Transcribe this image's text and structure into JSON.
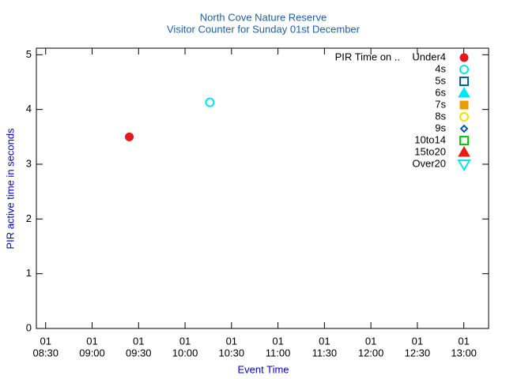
{
  "chart_data": {
    "type": "scatter",
    "title": "North Cove Nature Reserve",
    "subtitle": "Visitor Counter for Sunday 01st December",
    "x_label": "Event Time",
    "y_label": "PIR active time in seconds",
    "legend_title": "PIR Time on ..",
    "legend": "top-right",
    "xlim": [
      "08:24",
      "13:16"
    ],
    "xticks": [
      {
        "value": "08:30",
        "label": [
          "01",
          "08:30"
        ]
      },
      {
        "value": "09:00",
        "label": [
          "01",
          "09:00"
        ]
      },
      {
        "value": "09:30",
        "label": [
          "01",
          "09:30"
        ]
      },
      {
        "value": "10:00",
        "label": [
          "01",
          "10:00"
        ]
      },
      {
        "value": "10:30",
        "label": [
          "01",
          "10:30"
        ]
      },
      {
        "value": "11:00",
        "label": [
          "01",
          "11:00"
        ]
      },
      {
        "value": "11:30",
        "label": [
          "01",
          "11:30"
        ]
      },
      {
        "value": "12:00",
        "label": [
          "01",
          "12:00"
        ]
      },
      {
        "value": "12:30",
        "label": [
          "01",
          "12:30"
        ]
      },
      {
        "value": "13:00",
        "label": [
          "01",
          "13:00"
        ]
      }
    ],
    "ylim": [
      0,
      5.12
    ],
    "yticks": [
      0,
      1,
      2,
      3,
      4,
      5
    ],
    "series": [
      {
        "name": "Under4",
        "color": "#e01b1b",
        "marker": "circle",
        "filled": true,
        "x": [
          "09:24"
        ],
        "values": [
          3.5
        ]
      },
      {
        "name": "4s",
        "color": "#00e5ee",
        "marker": "circle",
        "filled": false,
        "x": [
          "10:16"
        ],
        "values": [
          4.13
        ]
      },
      {
        "name": "5s",
        "color": "#0060ad",
        "marker": "square",
        "filled": false,
        "x": [],
        "values": []
      },
      {
        "name": "6s",
        "color": "#00e5ee",
        "marker": "triangle",
        "filled": true,
        "x": [],
        "values": []
      },
      {
        "name": "7s",
        "color": "#e69f00",
        "marker": "square",
        "filled": true,
        "x": [],
        "values": []
      },
      {
        "name": "8s",
        "color": "#f0e000",
        "marker": "circle",
        "filled": false,
        "x": [],
        "values": []
      },
      {
        "name": "9s",
        "color": "#0060ad",
        "marker": "diamond",
        "filled": false,
        "x": [],
        "values": []
      },
      {
        "name": "10to14",
        "color": "#00cc00",
        "marker": "square",
        "filled": false,
        "x": [],
        "values": []
      },
      {
        "name": "15to20",
        "color": "#e51e10",
        "marker": "triangle",
        "filled": true,
        "x": [],
        "values": []
      },
      {
        "name": "Over20",
        "color": "#00e5ee",
        "marker": "down-triangle",
        "filled": false,
        "x": [],
        "values": []
      }
    ]
  }
}
